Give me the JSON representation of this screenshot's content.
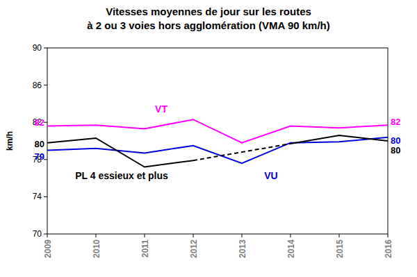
{
  "chart_data": {
    "type": "line",
    "title": "Vitesses moyennes de jour sur les routes\nà 2 ou 3 voies hors agglomération (VMA 90 km/h)",
    "y_label": "km/h",
    "categories": [
      "2009",
      "2010",
      "2011",
      "2012",
      "2013",
      "2014",
      "2015",
      "2016"
    ],
    "series": [
      {
        "name": "VT",
        "color": "#ff00ff",
        "values": [
          81.6,
          81.7,
          81.3,
          82.3,
          79.8,
          81.6,
          81.4,
          81.7
        ],
        "value_labels": [
          "82",
          null,
          null,
          null,
          null,
          null,
          null,
          "82"
        ]
      },
      {
        "name": "VU",
        "color": "#0000dd",
        "values": [
          79.0,
          79.2,
          78.7,
          79.5,
          77.6,
          79.8,
          79.9,
          80.4
        ],
        "value_labels": [
          "79",
          null,
          null,
          null,
          null,
          null,
          null,
          "80"
        ]
      },
      {
        "name": "PL 4 essieux et plus",
        "color": "#000000",
        "values": [
          79.8,
          80.3,
          77.2,
          77.9,
          null,
          79.7,
          80.6,
          80.0
        ],
        "value_labels": [
          "80",
          null,
          null,
          null,
          null,
          null,
          null,
          "80"
        ]
      }
    ],
    "ylim": [
      70,
      90
    ],
    "yticks": [
      70,
      74,
      78,
      82,
      86,
      90
    ],
    "grid": false,
    "data_labels": true
  }
}
